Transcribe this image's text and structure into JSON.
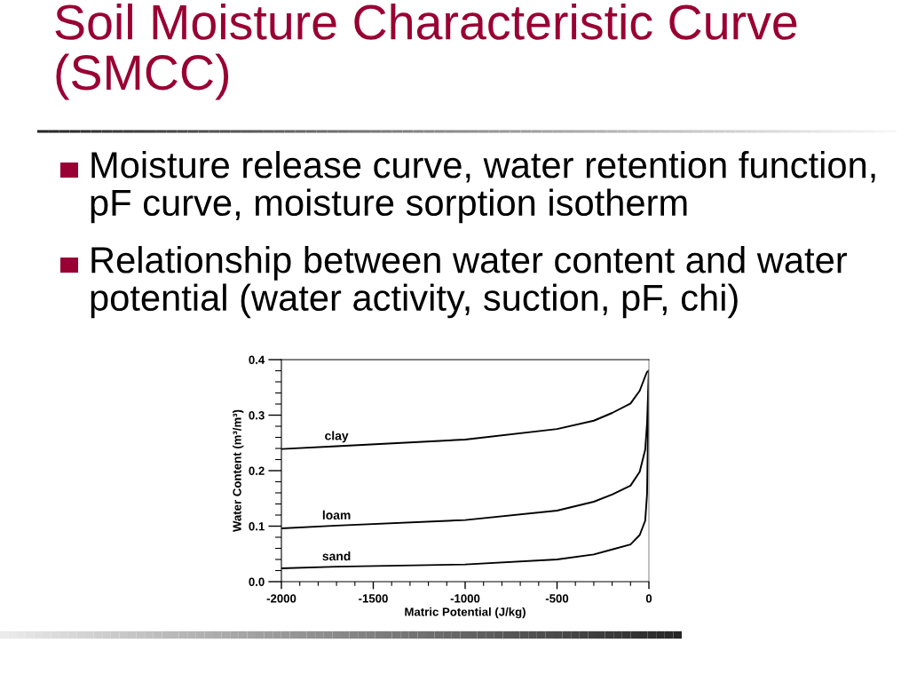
{
  "chart_data": {
    "type": "line",
    "title": "Soil Moisture Characteristic Curve (SMCC)",
    "annotations": [
      "Moisture release curve, water retention function, pF curve, moisture sorption isotherm",
      "Relationship between water content and water potential (water activity, suction, pF, chi)"
    ],
    "xlabel": "Matric Potential (J/kg)",
    "ylabel": "Water Content (m³/m³)",
    "x": [
      -2000,
      -1700,
      -1000,
      -500,
      -300,
      -200,
      -100,
      -50,
      -20,
      -10,
      0
    ],
    "series": [
      {
        "name": "clay",
        "color": "#000000",
        "values": [
          0.239,
          0.244,
          0.256,
          0.275,
          0.29,
          0.304,
          0.321,
          0.344,
          0.37,
          0.378,
          0.38
        ]
      },
      {
        "name": "loam",
        "color": "#000000",
        "values": [
          0.096,
          0.101,
          0.111,
          0.128,
          0.144,
          0.157,
          0.173,
          0.198,
          0.238,
          0.285,
          0.38
        ]
      },
      {
        "name": "sand",
        "color": "#000000",
        "values": [
          0.024,
          0.027,
          0.031,
          0.04,
          0.049,
          0.058,
          0.067,
          0.084,
          0.11,
          0.158,
          0.38
        ]
      }
    ],
    "xlim": [
      -2000,
      0
    ],
    "ylim": [
      0,
      0.4
    ],
    "xticks": [
      -2000,
      -1500,
      -1000,
      -500,
      0
    ],
    "yticks": [
      {
        "value": 0,
        "label": "0.0"
      },
      0.1,
      0.2,
      0.3,
      0.4
    ],
    "line_style": "solid"
  }
}
